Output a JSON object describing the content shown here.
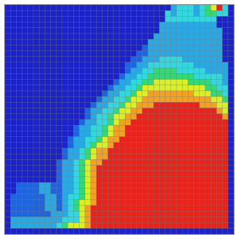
{
  "chart_data": {
    "type": "heatmap",
    "title": "",
    "xlabel": "",
    "ylabel": "",
    "grid": true,
    "legend": "none",
    "colormap": [
      "#1a22c8",
      "#1f64df",
      "#2aa8e4",
      "#35d7de",
      "#34d878",
      "#d8ef2b",
      "#f2a222",
      "#e8231b"
    ],
    "value_levels": [
      0,
      1,
      2,
      3,
      4,
      5,
      6,
      7
    ],
    "grid_size": [
      40,
      40
    ],
    "rows": [
      "0000000000000000000000000000023332345730",
      "0000000000000000000000000000323332344330",
      "0000000000000000000000000000333333333000",
      "0000000000000000000000000002222222222000",
      "0000000000000000000000000002222222222200",
      "0000000000000000000000000022222222222200",
      "0000000000000000000000000222222222222200",
      "0000000000000000000000001222222222222200",
      "0000000000000000000000011222222222222200",
      "0000000000000000000000112223333222222200",
      "0000000000000000000001122333333332222220",
      "0000000000000000000001223344443333322220",
      "0000000000000000000012233444444443333320",
      "0000000000000000000122334455555544443320",
      "0000000000000000001223345555555555544330",
      "0000000000000000012233455666666665554430",
      "0000000000000000122334556666666666665540",
      "0000000000000001223345566677777777666550",
      "0000000000000012233455667777777777777650",
      "0000000000000012334556677777777777777760",
      "0000000000000122334566777777777777777770",
      "0000000000001223345667777777777777777770",
      "0000000000001223345667777777777777777770",
      "0000000000012233456677777777777777777770",
      "0000000000012234556777777777777777777770",
      "0000000000122345667777777777777777777770",
      "0000000000122345667777777777777777777770",
      "0000000001223456677777777777777777777770",
      "0000000001223456777777777777777777777770",
      "0000000001223456777777777777777777777770",
      "0000000001223456777777777777777777777770",
      "0011112211223456777777777777777777777770",
      "0011112211223456777777777777777777777770",
      "0111111221233456777777777777777777777770",
      "0111111221234556777777777777777777777770",
      "0111111221234567777777777777777777777770",
      "0111111122233567777777777777777777777770",
      "0222222222333567777777777777777777777770",
      "0222222223455567777777777777777777777770",
      "0000000000000000000000000000000000000000"
    ]
  }
}
